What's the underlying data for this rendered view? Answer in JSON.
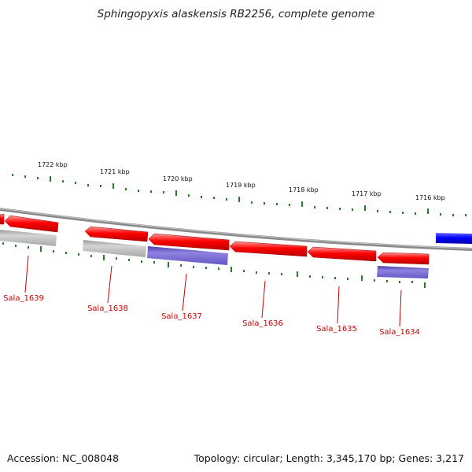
{
  "title": "Sphingopyxis alaskensis RB2256, complete genome",
  "footer": {
    "accession": "Accession: NC_008048",
    "summary": "Topology: circular; Length: 3,345,170 bp; Genes: 3,217"
  },
  "kbp_labels": [
    "1722 kbp",
    "1721 kbp",
    "1720 kbp",
    "1719 kbp",
    "1718 kbp",
    "1717 kbp",
    "1716 kbp"
  ],
  "gene_labels": [
    "Sala_1639",
    "Sala_1638",
    "Sala_1637",
    "Sala_1636",
    "Sala_1635",
    "Sala_1634"
  ],
  "colors": {
    "forward_gene": "#ff0000",
    "reverse_gene": "#0000ff",
    "grey_feature": "#b4b4b4",
    "purple_feature": "#7766cc",
    "scale_ticks": "#2a7a2a",
    "backbone": "#808080",
    "label": "#cc0000"
  }
}
